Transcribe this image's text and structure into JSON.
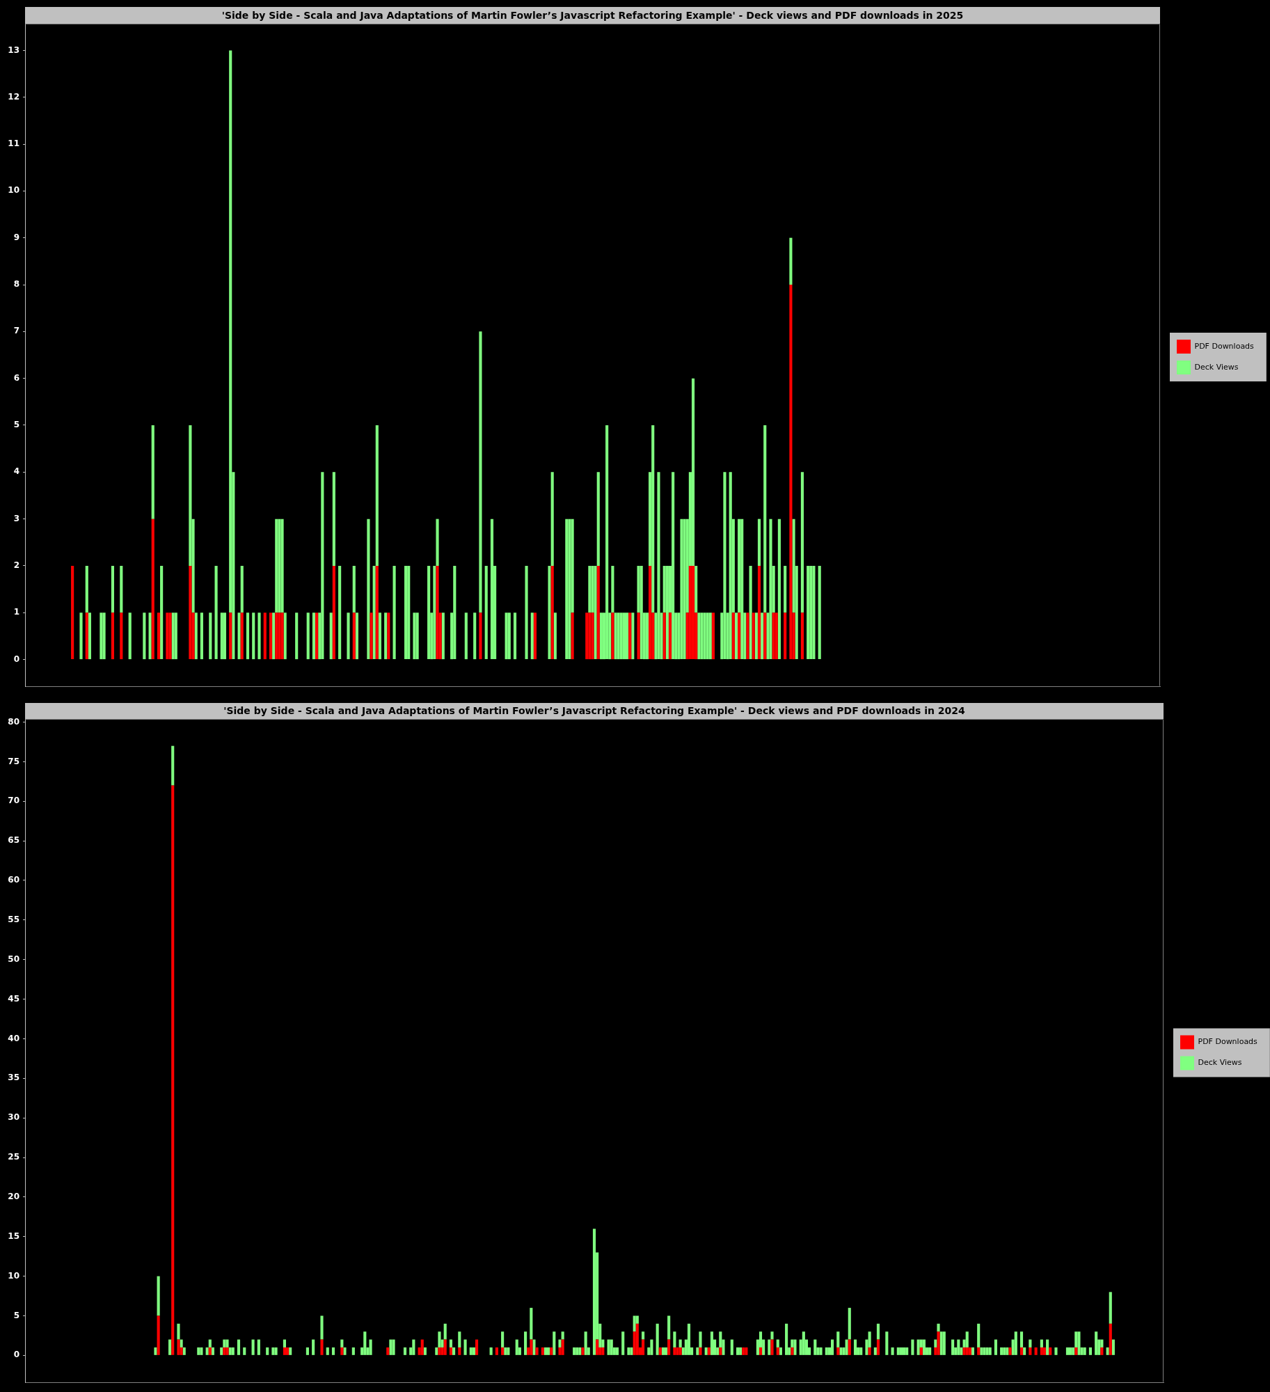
{
  "chart_data": [
    {
      "type": "bar",
      "title": "'Side by Side - Scala and Java Adaptations of Martin Fowler’s Javascript Refactoring Example' - Deck views and PDF downloads in 2025",
      "categories": [
        null,
        null,
        null,
        null,
        null,
        null,
        null,
        null,
        null,
        null,
        null,
        null,
        null,
        null,
        null,
        null,
        null,
        null,
        null,
        null,
        null,
        null,
        null,
        null,
        null,
        null,
        null,
        null,
        null,
        null,
        null,
        null,
        null,
        null,
        null,
        null,
        null,
        null,
        null,
        null,
        null,
        null,
        null,
        null,
        null,
        null,
        null,
        null,
        null,
        null,
        null,
        null,
        null,
        null,
        null,
        null,
        null,
        null,
        null,
        null,
        null,
        null,
        null,
        null,
        null,
        null,
        null,
        null,
        null,
        null,
        null,
        null,
        null,
        null,
        null,
        null,
        null,
        null,
        null,
        null,
        null,
        null,
        null,
        null,
        null,
        null,
        null,
        null,
        null,
        null,
        null,
        null,
        null,
        null,
        null,
        null,
        null,
        null,
        null,
        null,
        null,
        null,
        null,
        null,
        null,
        null,
        null,
        null,
        null,
        null,
        null,
        null,
        null,
        null,
        null,
        null,
        null,
        null,
        null,
        null,
        null,
        null,
        null,
        null,
        null,
        null,
        null,
        null,
        null,
        null,
        null,
        null,
        null,
        null,
        null,
        null,
        null,
        null,
        null,
        null,
        null,
        null,
        null,
        null,
        null,
        null,
        null,
        null,
        null,
        null,
        null,
        null,
        null,
        null,
        null,
        null,
        null,
        null,
        null,
        null,
        null,
        null,
        null,
        null,
        null,
        null,
        null,
        null,
        null,
        null,
        null,
        null,
        null,
        null,
        null,
        null,
        null,
        null,
        null,
        null,
        null,
        null,
        null,
        null,
        null,
        null,
        null,
        null,
        null,
        null,
        null,
        null,
        null,
        null,
        null,
        null,
        null,
        null,
        null,
        null,
        null,
        null,
        null,
        null,
        null,
        null,
        null,
        null,
        null,
        null,
        null,
        null,
        null,
        null,
        null,
        null,
        null,
        null,
        null,
        null,
        null,
        null,
        null,
        null,
        null,
        null,
        null,
        null,
        null,
        null,
        null,
        null,
        null,
        null,
        null,
        null,
        null,
        null,
        null,
        null,
        null,
        null,
        null,
        null,
        null,
        null,
        null,
        null,
        null,
        null,
        null,
        null,
        null,
        null,
        null,
        null,
        null,
        null,
        null,
        null,
        null,
        null,
        null,
        null,
        null,
        null,
        null,
        null,
        null,
        null,
        null,
        null,
        null,
        null,
        null,
        null,
        null,
        null,
        null,
        null,
        null,
        null,
        null,
        null,
        null,
        null,
        null,
        null,
        null,
        null,
        null,
        null,
        null,
        null,
        null,
        null,
        null,
        null,
        null,
        null,
        null,
        null,
        null,
        null,
        null,
        null,
        null,
        null,
        null,
        null,
        null,
        null,
        null,
        null,
        null,
        null,
        null,
        null,
        null,
        null,
        null,
        null,
        null,
        null,
        null,
        null,
        null,
        null,
        null,
        null,
        null,
        null,
        null,
        null,
        null,
        null,
        null,
        null,
        null,
        null,
        null,
        null,
        null,
        null,
        null,
        null,
        null,
        null,
        null,
        null,
        null,
        null,
        null,
        null,
        null,
        null,
        null,
        null,
        null,
        null,
        null,
        null,
        null,
        null,
        null,
        null,
        null,
        null,
        null,
        null,
        null,
        null,
        null,
        null,
        null,
        null,
        null,
        null,
        null,
        null,
        null,
        null,
        null,
        null,
        null,
        null,
        null,
        null,
        null,
        null,
        null,
        null,
        null,
        null,
        null
      ],
      "series": [
        {
          "name": "PDF Downloads",
          "color": "#ff0000",
          "values": [
            null,
            null,
            null,
            null,
            null,
            null,
            null,
            null,
            null,
            null,
            null,
            null,
            null,
            null,
            null,
            null,
            2,
            0,
            0,
            0,
            0,
            1,
            0,
            0,
            0,
            0,
            0,
            0,
            0,
            0,
            1,
            0,
            0,
            1,
            0,
            0,
            0,
            0,
            0,
            0,
            0,
            0,
            0,
            0,
            3,
            0,
            1,
            0,
            0,
            1,
            1,
            0,
            0,
            0,
            0,
            0,
            0,
            2,
            1,
            0,
            0,
            0,
            0,
            0,
            0,
            0,
            0,
            0,
            0,
            0,
            0,
            1,
            0,
            0,
            0,
            1,
            0,
            0,
            0,
            0,
            0,
            0,
            0,
            1,
            0,
            1,
            0,
            1,
            1,
            1,
            0,
            0,
            0,
            0,
            0,
            0,
            0,
            0,
            0,
            0,
            0,
            1,
            0,
            0,
            0,
            0,
            0,
            2,
            0,
            0,
            0,
            0,
            0,
            0,
            1,
            0,
            0,
            0,
            0,
            0,
            1,
            0,
            2,
            0,
            0,
            0,
            1,
            0,
            0,
            0,
            0,
            0,
            0,
            0,
            0,
            0,
            0,
            0,
            0,
            0,
            0,
            0,
            0,
            2,
            1,
            0,
            0,
            0,
            0,
            0,
            0,
            0,
            0,
            0,
            0,
            0,
            0,
            0,
            1,
            0,
            0,
            0,
            0,
            0,
            0,
            0,
            0,
            0,
            0,
            0,
            0,
            0,
            0,
            0,
            0,
            0,
            0,
            1,
            0,
            0,
            0,
            0,
            0,
            2,
            0,
            0,
            0,
            0,
            0,
            0,
            1,
            0,
            0,
            0,
            0,
            1,
            1,
            1,
            0,
            2,
            0,
            0,
            0,
            0,
            1,
            0,
            0,
            0,
            0,
            0,
            1,
            0,
            0,
            1,
            0,
            0,
            0,
            2,
            1,
            0,
            0,
            0,
            1,
            0,
            1,
            0,
            0,
            0,
            0,
            0,
            1,
            2,
            2,
            1,
            0,
            0,
            0,
            0,
            0,
            1,
            0,
            0,
            0,
            0,
            0,
            0,
            1,
            0,
            1,
            0,
            0,
            1,
            0,
            1,
            0,
            2,
            0,
            1,
            0,
            0,
            1,
            1,
            0,
            0,
            1,
            0,
            8,
            1,
            0,
            0,
            1,
            0,
            0,
            0,
            0,
            0,
            0,
            null,
            null,
            null,
            null,
            null,
            null,
            null,
            null,
            null,
            null,
            null,
            null,
            null,
            null,
            null,
            null,
            null,
            null,
            null,
            null,
            null,
            null,
            null,
            null,
            null,
            null,
            null,
            null,
            null,
            null,
            null,
            null,
            null,
            null,
            null,
            null,
            null,
            null,
            null,
            null,
            null,
            null,
            null,
            null,
            null,
            null,
            null,
            null,
            null,
            null,
            null,
            null,
            null,
            null,
            null,
            null,
            null,
            null,
            null,
            null,
            null,
            null,
            null,
            null,
            null,
            null,
            null,
            null,
            null,
            null,
            null,
            null,
            null,
            null,
            null,
            null,
            null,
            null,
            null,
            null,
            null,
            null,
            null,
            null,
            null,
            null,
            null,
            null,
            null,
            null,
            null,
            null,
            null,
            null,
            null,
            null,
            null,
            null,
            null,
            null,
            null,
            null,
            null,
            null,
            null,
            null,
            null,
            null,
            null,
            null,
            null,
            null,
            null,
            null,
            null,
            null,
            null,
            null
          ]
        },
        {
          "name": "Deck Views",
          "color": "#80ff80",
          "values": [
            null,
            null,
            null,
            null,
            null,
            null,
            null,
            null,
            null,
            null,
            null,
            null,
            null,
            null,
            null,
            null,
            0,
            0,
            0,
            1,
            0,
            1,
            1,
            0,
            0,
            0,
            1,
            1,
            0,
            0,
            1,
            0,
            0,
            1,
            0,
            0,
            1,
            0,
            0,
            0,
            0,
            1,
            0,
            1,
            2,
            0,
            0,
            2,
            0,
            0,
            0,
            1,
            1,
            0,
            0,
            0,
            0,
            3,
            2,
            1,
            0,
            1,
            0,
            0,
            1,
            0,
            2,
            0,
            1,
            1,
            0,
            12,
            4,
            0,
            1,
            1,
            0,
            1,
            0,
            1,
            0,
            1,
            0,
            0,
            0,
            0,
            1,
            2,
            2,
            2,
            1,
            0,
            0,
            0,
            1,
            0,
            0,
            0,
            1,
            0,
            1,
            0,
            1,
            4,
            0,
            0,
            1,
            2,
            0,
            2,
            0,
            0,
            1,
            0,
            1,
            1,
            0,
            0,
            0,
            3,
            0,
            2,
            3,
            1,
            0,
            1,
            0,
            0,
            2,
            0,
            0,
            0,
            2,
            2,
            0,
            1,
            1,
            0,
            0,
            0,
            2,
            1,
            2,
            1,
            0,
            1,
            0,
            0,
            1,
            2,
            0,
            0,
            0,
            1,
            0,
            0,
            1,
            0,
            6,
            0,
            2,
            0,
            3,
            2,
            0,
            0,
            0,
            1,
            1,
            0,
            1,
            0,
            0,
            0,
            2,
            0,
            1,
            0,
            0,
            0,
            0,
            0,
            2,
            2,
            1,
            0,
            0,
            0,
            3,
            3,
            2,
            0,
            0,
            0,
            0,
            0,
            1,
            1,
            2,
            2,
            1,
            1,
            5,
            1,
            1,
            1,
            1,
            1,
            1,
            1,
            0,
            1,
            0,
            1,
            2,
            1,
            1,
            2,
            4,
            1,
            4,
            1,
            1,
            2,
            1,
            4,
            1,
            1,
            3,
            3,
            2,
            2,
            4,
            1,
            1,
            1,
            1,
            1,
            1,
            0,
            0,
            0,
            1,
            4,
            1,
            4,
            2,
            1,
            2,
            3,
            1,
            0,
            2,
            0,
            1,
            1,
            1,
            4,
            1,
            3,
            1,
            0,
            3,
            0,
            1,
            0,
            1,
            2,
            2,
            0,
            3,
            0,
            2,
            2,
            2,
            0,
            2,
            null,
            null,
            null,
            null,
            null,
            null,
            null,
            null,
            null,
            null,
            null,
            null,
            null,
            null,
            null,
            null,
            null,
            null,
            null,
            null,
            null,
            null,
            null,
            null,
            null,
            null,
            null,
            null,
            null,
            null,
            null,
            null,
            null,
            null,
            null,
            null,
            null,
            null,
            null,
            null,
            null,
            null,
            null,
            null,
            null,
            null,
            null,
            null,
            null,
            null,
            null,
            null,
            null,
            null,
            null,
            null,
            null,
            null,
            null,
            null,
            null,
            null,
            null,
            null,
            null,
            null,
            null,
            null,
            null,
            null,
            null,
            null,
            null,
            null,
            null,
            null,
            null,
            null,
            null,
            null,
            null,
            null,
            null,
            null,
            null,
            null,
            null,
            null,
            null,
            null,
            null,
            null,
            null,
            null,
            null,
            null,
            null,
            null,
            null,
            null,
            null,
            null,
            null,
            null,
            null,
            null,
            null,
            null,
            null,
            null,
            null,
            null,
            null,
            null,
            null,
            null,
            null,
            null
          ]
        }
      ],
      "stacked": true,
      "ylim": [
        -0.57,
        13.57
      ],
      "yticks": [
        0,
        1,
        2,
        3,
        4,
        5,
        6,
        7,
        8,
        9,
        10,
        11,
        12,
        13
      ],
      "legend": "right"
    },
    {
      "type": "bar",
      "title": "'Side by Side - Scala and Java Adaptations of Martin Fowler’s Javascript Refactoring Example' - Deck views and PDF downloads in 2024",
      "categories": [
        null,
        null,
        null,
        null,
        null,
        null,
        null,
        null,
        null,
        null,
        null,
        null,
        null,
        null,
        null,
        null,
        null,
        null,
        null,
        null,
        null,
        null,
        null,
        null,
        null,
        null,
        null,
        null,
        null,
        null,
        null,
        null,
        null,
        null,
        null,
        null,
        null,
        null,
        null,
        null,
        null,
        null,
        null,
        null,
        null,
        null,
        null,
        null,
        null,
        null,
        null,
        null,
        null,
        null,
        null,
        null,
        null,
        null,
        null,
        null,
        null,
        null,
        null,
        null,
        null,
        null,
        null,
        null,
        null,
        null,
        null,
        null,
        null,
        null,
        null,
        null,
        null,
        null,
        null,
        null,
        null,
        null,
        null,
        null,
        null,
        null,
        null,
        null,
        null,
        null,
        null,
        null,
        null,
        null,
        null,
        null,
        null,
        null,
        null,
        null,
        null,
        null,
        null,
        null,
        null,
        null,
        null,
        null,
        null,
        null,
        null,
        null,
        null,
        null,
        null,
        null,
        null,
        null,
        null,
        null,
        null,
        null,
        null,
        null,
        null,
        null,
        null,
        null,
        null,
        null,
        null,
        null,
        null,
        null,
        null,
        null,
        null,
        null,
        null,
        null,
        null,
        null,
        null,
        null,
        null,
        null,
        null,
        null,
        null,
        null,
        null,
        null,
        null,
        null,
        null,
        null,
        null,
        null,
        null,
        null,
        null,
        null,
        null,
        null,
        null,
        null,
        null,
        null,
        null,
        null,
        null,
        null,
        null,
        null,
        null,
        null,
        null,
        null,
        null,
        null,
        null,
        null,
        null,
        null,
        null,
        null,
        null,
        null,
        null,
        null,
        null,
        null,
        null,
        null,
        null,
        null,
        null,
        null,
        null,
        null,
        null,
        null,
        null,
        null,
        null,
        null,
        null,
        null,
        null,
        null,
        null,
        null,
        null,
        null,
        null,
        null,
        null,
        null,
        null,
        null,
        null,
        null,
        null,
        null,
        null,
        null,
        null,
        null,
        null,
        null,
        null,
        null,
        null,
        null,
        null,
        null,
        null,
        null,
        null,
        null,
        null,
        null,
        null,
        null,
        null,
        null,
        null,
        null,
        null,
        null,
        null,
        null,
        null,
        null,
        null,
        null,
        null,
        null,
        null,
        null,
        null,
        null,
        null,
        null,
        null,
        null,
        null,
        null,
        null,
        null,
        null,
        null,
        null,
        null,
        null,
        null,
        null,
        null,
        null,
        null,
        null,
        null,
        null,
        null,
        null,
        null,
        null,
        null,
        null,
        null,
        null,
        null,
        null,
        null,
        null,
        null,
        null,
        null,
        null,
        null,
        null,
        null,
        null,
        null,
        null,
        null,
        null,
        null,
        null,
        null,
        null,
        null,
        null,
        null,
        null,
        null,
        null,
        null,
        null,
        null,
        null,
        null,
        null,
        null,
        null,
        null,
        null,
        null,
        null,
        null,
        null,
        null,
        null,
        null,
        null,
        null,
        null,
        null,
        null,
        null,
        null,
        null,
        null,
        null,
        null,
        null,
        null,
        null,
        null,
        null,
        null,
        null,
        null,
        null,
        null,
        null,
        null,
        null,
        null,
        null,
        null,
        null,
        null,
        null,
        null,
        null,
        null,
        null,
        null,
        null,
        null,
        null,
        null,
        null,
        null,
        null,
        null,
        null,
        null,
        null,
        null,
        null,
        null,
        null,
        null,
        null,
        null,
        null,
        null,
        null,
        null,
        null,
        null,
        null,
        null,
        null,
        null
      ],
      "series": [
        {
          "name": "PDF Downloads",
          "color": "#ff0000",
          "values": [
            null,
            null,
            null,
            null,
            null,
            null,
            null,
            null,
            null,
            null,
            null,
            null,
            null,
            null,
            null,
            null,
            null,
            null,
            null,
            null,
            null,
            null,
            null,
            null,
            null,
            null,
            null,
            null,
            null,
            null,
            null,
            null,
            null,
            null,
            null,
            null,
            null,
            null,
            null,
            null,
            null,
            null,
            null,
            null,
            null,
            0,
            5,
            0,
            0,
            0,
            0,
            72,
            0,
            2,
            1,
            0,
            0,
            0,
            0,
            0,
            0,
            0,
            0,
            0,
            1,
            0,
            0,
            0,
            0,
            1,
            1,
            0,
            0,
            0,
            0,
            0,
            0,
            0,
            0,
            0,
            0,
            0,
            0,
            0,
            0,
            0,
            0,
            0,
            0,
            0,
            1,
            1,
            0,
            0,
            0,
            0,
            0,
            0,
            0,
            0,
            0,
            0,
            0,
            2,
            0,
            0,
            0,
            0,
            0,
            0,
            1,
            0,
            0,
            0,
            0,
            0,
            0,
            0,
            0,
            0,
            0,
            0,
            0,
            0,
            0,
            0,
            1,
            0,
            0,
            0,
            0,
            0,
            0,
            0,
            0,
            0,
            0,
            1,
            2,
            0,
            0,
            0,
            0,
            0,
            1,
            1,
            2,
            0,
            1,
            0,
            0,
            1,
            0,
            0,
            0,
            0,
            0,
            2,
            0,
            0,
            0,
            0,
            0,
            0,
            1,
            0,
            1,
            0,
            0,
            0,
            0,
            0,
            0,
            0,
            0,
            1,
            2,
            0,
            1,
            0,
            1,
            0,
            0,
            1,
            0,
            0,
            1,
            2,
            0,
            0,
            0,
            0,
            0,
            0,
            1,
            0,
            0,
            0,
            0,
            2,
            1,
            1,
            0,
            0,
            0,
            0,
            0,
            0,
            0,
            0,
            0,
            0,
            3,
            4,
            1,
            2,
            0,
            0,
            0,
            0,
            0,
            1,
            0,
            0,
            2,
            0,
            1,
            1,
            1,
            0,
            0,
            0,
            0,
            0,
            0,
            1,
            0,
            0,
            1,
            0,
            0,
            0,
            1,
            0,
            0,
            0,
            0,
            0,
            0,
            0,
            1,
            1,
            0,
            0,
            0,
            0,
            1,
            0,
            0,
            0,
            2,
            0,
            1,
            0,
            0,
            0,
            0,
            1,
            0,
            0,
            0,
            0,
            0,
            0,
            0,
            0,
            0,
            0,
            0,
            0,
            0,
            0,
            0,
            1,
            0,
            0,
            0,
            2,
            0,
            0,
            0,
            0,
            0,
            0,
            1,
            0,
            0,
            2,
            0,
            0,
            0,
            0,
            0,
            0,
            0,
            0,
            0,
            0,
            0,
            0,
            0,
            0,
            1,
            0,
            0,
            0,
            0,
            1,
            3,
            0,
            0,
            0,
            0,
            0,
            0,
            0,
            0,
            1,
            1,
            1,
            0,
            0,
            1,
            0,
            0,
            0,
            0,
            0,
            0,
            0,
            0,
            0,
            0,
            1,
            0,
            0,
            0,
            1,
            0,
            0,
            1,
            0,
            1,
            0,
            1,
            1,
            0,
            1,
            0,
            0,
            0,
            0,
            0,
            0,
            0,
            0,
            1,
            0,
            0,
            0,
            0,
            0,
            0,
            0,
            0,
            1,
            0,
            0,
            4,
            0,
            null,
            null,
            null,
            null,
            null,
            null,
            null,
            null,
            null,
            null,
            null,
            null,
            null,
            null,
            null,
            null,
            null
          ]
        },
        {
          "name": "Deck Views",
          "color": "#80ff80",
          "values": [
            null,
            null,
            null,
            null,
            null,
            null,
            null,
            null,
            null,
            null,
            null,
            null,
            null,
            null,
            null,
            null,
            null,
            null,
            null,
            null,
            null,
            null,
            null,
            null,
            null,
            null,
            null,
            null,
            null,
            null,
            null,
            null,
            null,
            null,
            null,
            null,
            null,
            null,
            null,
            null,
            null,
            null,
            null,
            null,
            null,
            1,
            5,
            0,
            0,
            0,
            2,
            5,
            0,
            2,
            1,
            1,
            0,
            0,
            0,
            0,
            1,
            1,
            0,
            1,
            1,
            1,
            0,
            0,
            1,
            1,
            1,
            1,
            1,
            0,
            2,
            0,
            1,
            0,
            0,
            2,
            0,
            2,
            0,
            0,
            1,
            0,
            1,
            1,
            0,
            0,
            1,
            0,
            1,
            0,
            0,
            0,
            0,
            0,
            1,
            0,
            2,
            0,
            0,
            3,
            0,
            1,
            0,
            1,
            0,
            0,
            1,
            1,
            0,
            0,
            1,
            0,
            0,
            1,
            3,
            1,
            2,
            0,
            0,
            0,
            0,
            0,
            0,
            2,
            2,
            0,
            0,
            0,
            1,
            0,
            1,
            2,
            0,
            0,
            0,
            1,
            0,
            0,
            0,
            1,
            2,
            1,
            2,
            0,
            1,
            1,
            0,
            2,
            0,
            2,
            0,
            1,
            1,
            0,
            0,
            0,
            0,
            0,
            1,
            0,
            0,
            0,
            2,
            1,
            1,
            0,
            0,
            2,
            1,
            0,
            3,
            0,
            4,
            2,
            0,
            0,
            0,
            1,
            1,
            0,
            3,
            0,
            1,
            1,
            0,
            0,
            0,
            1,
            1,
            1,
            0,
            3,
            1,
            0,
            16,
            11,
            3,
            1,
            0,
            2,
            2,
            1,
            1,
            0,
            3,
            0,
            1,
            1,
            2,
            1,
            0,
            1,
            0,
            1,
            2,
            0,
            4,
            0,
            1,
            1,
            3,
            0,
            2,
            0,
            1,
            1,
            2,
            4,
            1,
            0,
            1,
            2,
            0,
            1,
            0,
            3,
            2,
            1,
            2,
            2,
            0,
            0,
            2,
            0,
            1,
            1,
            0,
            0,
            0,
            0,
            0,
            2,
            2,
            2,
            0,
            2,
            1,
            0,
            1,
            1,
            0,
            4,
            1,
            1,
            2,
            0,
            2,
            3,
            2,
            1,
            0,
            2,
            1,
            1,
            0,
            1,
            1,
            2,
            0,
            2,
            1,
            1,
            2,
            4,
            0,
            2,
            1,
            1,
            0,
            2,
            2,
            0,
            1,
            2,
            0,
            0,
            3,
            0,
            1,
            0,
            1,
            1,
            1,
            1,
            0,
            2,
            0,
            2,
            1,
            2,
            1,
            1,
            0,
            1,
            1,
            3,
            3,
            0,
            0,
            2,
            1,
            2,
            1,
            1,
            2,
            0,
            1,
            0,
            3,
            1,
            1,
            1,
            1,
            0,
            2,
            0,
            1,
            1,
            1,
            0,
            2,
            3,
            0,
            2,
            1,
            0,
            1,
            0,
            0,
            0,
            1,
            0,
            2,
            0,
            0,
            1,
            0,
            0,
            0,
            1,
            1,
            1,
            2,
            3,
            1,
            1,
            0,
            1,
            0,
            3,
            2,
            1,
            0,
            1,
            4,
            2,
            null,
            null,
            null,
            null,
            null,
            null,
            null,
            null,
            null,
            null,
            null,
            null,
            null,
            null,
            null,
            null,
            null
          ]
        }
      ],
      "stacked": true,
      "ylim": [
        -3.4,
        80.4
      ],
      "yticks": [
        0,
        5,
        10,
        15,
        20,
        25,
        30,
        35,
        40,
        45,
        50,
        55,
        60,
        65,
        70,
        75,
        80
      ],
      "legend": "right"
    }
  ]
}
